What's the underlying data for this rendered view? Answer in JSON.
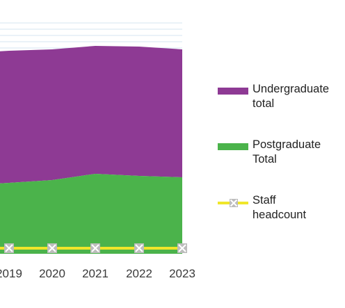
{
  "chart_data": {
    "type": "area",
    "x": [
      "2019",
      "2020",
      "2021",
      "2022",
      "2023"
    ],
    "stacked": true,
    "series": [
      {
        "name": "Postgraduate Total",
        "color": "#4bb34b",
        "values": [
          102,
          106,
          115,
          112,
          110
        ]
      },
      {
        "name": "Undergraduate total",
        "color": "#8e3a94",
        "values": [
          190,
          188,
          184,
          186,
          184
        ]
      },
      {
        "name": "Staff headcount",
        "color": "#f0e62a",
        "marker": "x-box",
        "values": [
          0,
          0,
          0,
          0,
          0
        ]
      }
    ],
    "grid": true,
    "legend_position": "right"
  },
  "legend": {
    "items": [
      {
        "line1": "Undergraduate",
        "line2": "total"
      },
      {
        "line1": "Postgraduate",
        "line2": "Total"
      },
      {
        "line1": "Staff",
        "line2": "headcount"
      }
    ]
  }
}
